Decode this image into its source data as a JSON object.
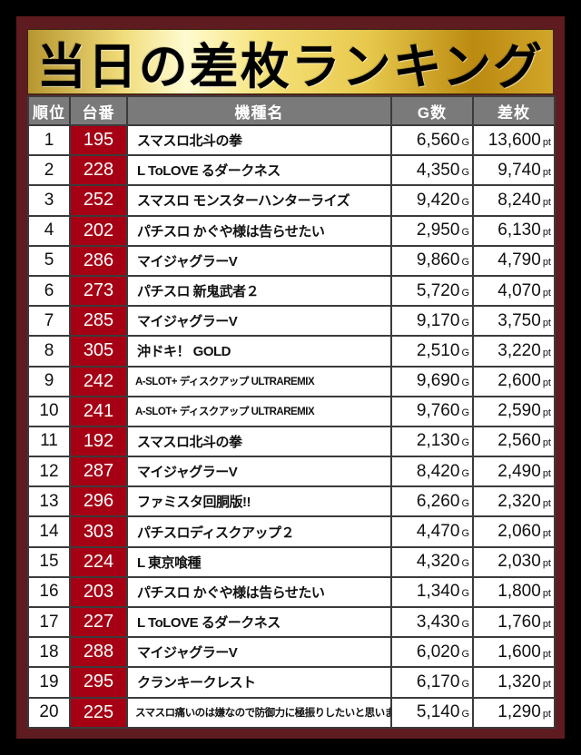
{
  "title": "当日の差枚ランキング",
  "headers": {
    "rank": "順位",
    "machine_no": "台番",
    "model": "機種名",
    "games": "G数",
    "diff": "差枚"
  },
  "units": {
    "games": "G",
    "diff": "pt"
  },
  "colors": {
    "frame": "#5e1b20",
    "number_cell": "#a60014",
    "header": "#7a7a7a"
  },
  "rows": [
    {
      "rank": "1",
      "no": "195",
      "name": "スマスロ北斗の拳",
      "games": "6,560",
      "diff": "13,600"
    },
    {
      "rank": "2",
      "no": "228",
      "name": "L ToLOVE るダークネス",
      "games": "4,350",
      "diff": "9,740"
    },
    {
      "rank": "3",
      "no": "252",
      "name": "スマスロ モンスターハンターライズ",
      "games": "9,420",
      "diff": "8,240"
    },
    {
      "rank": "4",
      "no": "202",
      "name": "パチスロ かぐや様は告らせたい",
      "games": "2,950",
      "diff": "6,130"
    },
    {
      "rank": "5",
      "no": "286",
      "name": "マイジャグラーV",
      "games": "9,860",
      "diff": "4,790"
    },
    {
      "rank": "6",
      "no": "273",
      "name": "パチスロ 新鬼武者２",
      "games": "5,720",
      "diff": "4,070"
    },
    {
      "rank": "7",
      "no": "285",
      "name": "マイジャグラーV",
      "games": "9,170",
      "diff": "3,750"
    },
    {
      "rank": "8",
      "no": "305",
      "name": "沖ドキ！ GOLD",
      "games": "2,510",
      "diff": "3,220"
    },
    {
      "rank": "9",
      "no": "242",
      "name": "A-SLOT+ ディスクアップ ULTRAREMIX",
      "games": "9,690",
      "diff": "2,600"
    },
    {
      "rank": "10",
      "no": "241",
      "name": "A-SLOT+ ディスクアップ ULTRAREMIX",
      "games": "9,760",
      "diff": "2,590"
    },
    {
      "rank": "11",
      "no": "192",
      "name": "スマスロ北斗の拳",
      "games": "2,130",
      "diff": "2,560"
    },
    {
      "rank": "12",
      "no": "287",
      "name": "マイジャグラーV",
      "games": "8,420",
      "diff": "2,490"
    },
    {
      "rank": "13",
      "no": "296",
      "name": "ファミスタ回胴版!!",
      "games": "6,260",
      "diff": "2,320"
    },
    {
      "rank": "14",
      "no": "303",
      "name": "パチスロディスクアップ２",
      "games": "4,470",
      "diff": "2,060"
    },
    {
      "rank": "15",
      "no": "224",
      "name": "L 東京喰種",
      "games": "4,320",
      "diff": "2,030"
    },
    {
      "rank": "16",
      "no": "203",
      "name": "パチスロ かぐや様は告らせたい",
      "games": "1,340",
      "diff": "1,800"
    },
    {
      "rank": "17",
      "no": "227",
      "name": "L ToLOVE るダークネス",
      "games": "3,430",
      "diff": "1,760"
    },
    {
      "rank": "18",
      "no": "288",
      "name": "マイジャグラーV",
      "games": "6,020",
      "diff": "1,600"
    },
    {
      "rank": "19",
      "no": "295",
      "name": "クランキークレスト",
      "games": "6,170",
      "diff": "1,320"
    },
    {
      "rank": "20",
      "no": "225",
      "name": "スマスロ痛いのは嫌なので防御力に極振りしたいと思います。",
      "games": "5,140",
      "diff": "1,290"
    }
  ]
}
